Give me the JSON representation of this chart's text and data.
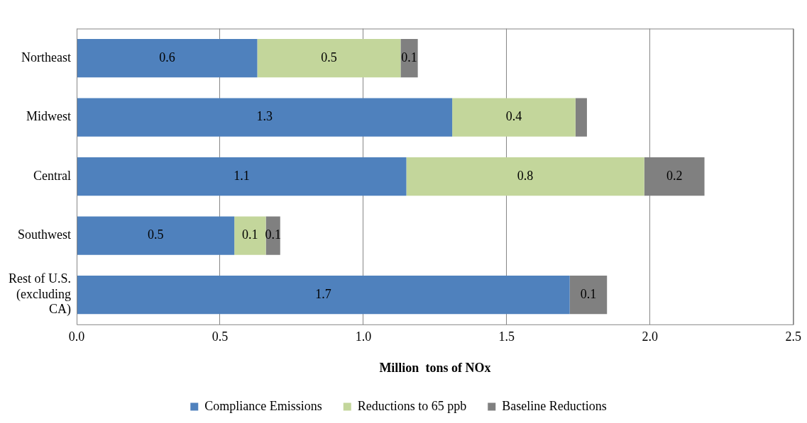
{
  "chart_data": {
    "type": "bar",
    "orientation": "horizontal",
    "stacked": true,
    "xlabel": "Million  tons of NOx",
    "categories": [
      "Northeast",
      "Midwest",
      "Central",
      "Southwest",
      "Rest of U.S. (excluding CA)"
    ],
    "series": [
      {
        "name": "Compliance Emissions",
        "color": "#4f81bd",
        "values": [
          0.63,
          1.31,
          1.15,
          0.55,
          1.72
        ],
        "value_labels": [
          "0.6",
          "1.3",
          "1.1",
          "0.5",
          "1.7"
        ]
      },
      {
        "name": "Reductions to 65 ppb",
        "color": "#c3d69b",
        "values": [
          0.5,
          0.43,
          0.83,
          0.11,
          null
        ],
        "value_labels": [
          "0.5",
          "0.4",
          "0.8",
          "0.1",
          null
        ]
      },
      {
        "name": "Baseline Reductions",
        "color": "#808080",
        "values": [
          0.06,
          0.04,
          0.21,
          0.05,
          0.13
        ],
        "value_labels": [
          "0.1",
          null,
          "0.2",
          "0.1",
          "0.1"
        ]
      }
    ],
    "xlim": [
      0,
      2.5
    ],
    "xticks": [
      {
        "value": 0,
        "label": "0.0"
      },
      {
        "value": 0.5,
        "label": "0.5"
      },
      {
        "value": 1,
        "label": "1.0"
      },
      {
        "value": 1.5,
        "label": "1.5"
      },
      {
        "value": 2,
        "label": "2.0"
      },
      {
        "value": 2.5,
        "label": "2.5"
      }
    ],
    "grid": "x",
    "legend": "bottom"
  }
}
